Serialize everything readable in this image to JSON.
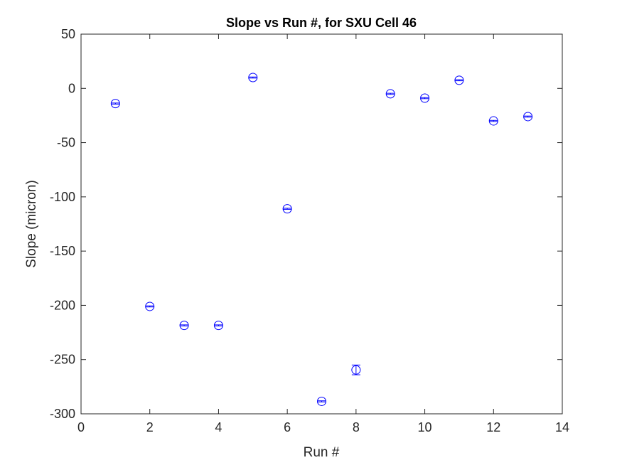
{
  "chart_data": {
    "type": "scatter",
    "title": "Slope vs Run #, for SXU Cell 46",
    "xlabel": "Run #",
    "ylabel": "Slope (micron)",
    "xlim": [
      0,
      14
    ],
    "ylim": [
      -300,
      50
    ],
    "xticks": [
      0,
      2,
      4,
      6,
      8,
      10,
      12,
      14
    ],
    "yticks": [
      50,
      0,
      -50,
      -100,
      -150,
      -200,
      -250,
      -300
    ],
    "grid": false,
    "marker": "circle-with-errorbar",
    "color": "#0000ff",
    "x": [
      1,
      2,
      3,
      4,
      5,
      6,
      7,
      8,
      9,
      10,
      11,
      12,
      13
    ],
    "y": [
      -14,
      -201,
      -218.5,
      -218.5,
      10,
      -111,
      -288.5,
      -259.5,
      -5,
      -9,
      7.5,
      -30,
      -26
    ],
    "error": [
      0.5,
      0.5,
      0.5,
      0.5,
      0.5,
      0.5,
      0.5,
      4.5,
      0.5,
      0.5,
      0.5,
      0.5,
      0.5
    ]
  }
}
